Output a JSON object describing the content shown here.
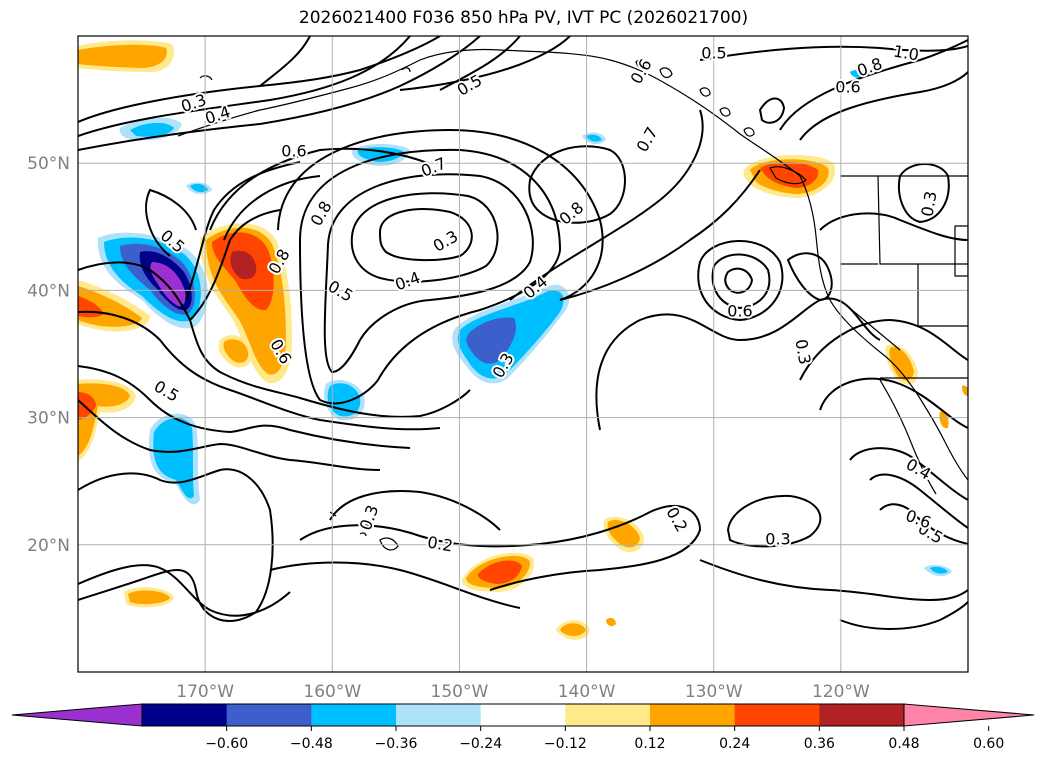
{
  "title": "2026021400 F036 850 hPa PV, IVT PC (2026021700)",
  "map": {
    "lon_range": [
      -180,
      -110
    ],
    "lat_range": [
      10,
      60
    ],
    "lat_ticks": [
      {
        "value": 50,
        "label": "50°N"
      },
      {
        "value": 40,
        "label": "40°N"
      },
      {
        "value": 30,
        "label": "30°N"
      },
      {
        "value": 20,
        "label": "20°N"
      }
    ],
    "lon_ticks": [
      {
        "value": -170,
        "label": "170°W"
      },
      {
        "value": -160,
        "label": "160°W"
      },
      {
        "value": -150,
        "label": "150°W"
      },
      {
        "value": -140,
        "label": "140°W"
      },
      {
        "value": -130,
        "label": "130°W"
      },
      {
        "value": -120,
        "label": "120°W"
      }
    ],
    "gridlines": true
  },
  "colorbar": {
    "colors": [
      "#9b30d0",
      "#00008b",
      "#3d5fcc",
      "#00bfff",
      "#aee2fa",
      "#ffffff",
      "#ffe98a",
      "#ffa500",
      "#ff4500",
      "#b22222",
      "#ff85a8"
    ],
    "tick_labels": [
      "−0.60",
      "−0.48",
      "−0.36",
      "−0.24",
      "−0.12",
      "0.12",
      "0.24",
      "0.36",
      "0.48",
      "0.60"
    ],
    "extend": "both"
  },
  "contour_labels": [
    "0.3",
    "0.4",
    "0.6",
    "0.7",
    "0.5",
    "0.8",
    "0.6",
    "1.0",
    "0.8",
    "0.6",
    "0.5",
    "0.7",
    "0.8",
    "0.3",
    "0.4",
    "0.5",
    "0.8",
    "0.6",
    "0.4",
    "0.3",
    "0.6",
    "0.5",
    "0.5",
    "0.3",
    "0.2",
    "0.2",
    "0.3",
    "0.3",
    "0.4",
    "0.5",
    "0.3",
    "0.6"
  ],
  "colors": {
    "contour": "#000000",
    "grid": "#b0b0b0",
    "tick_text": "#808080"
  }
}
